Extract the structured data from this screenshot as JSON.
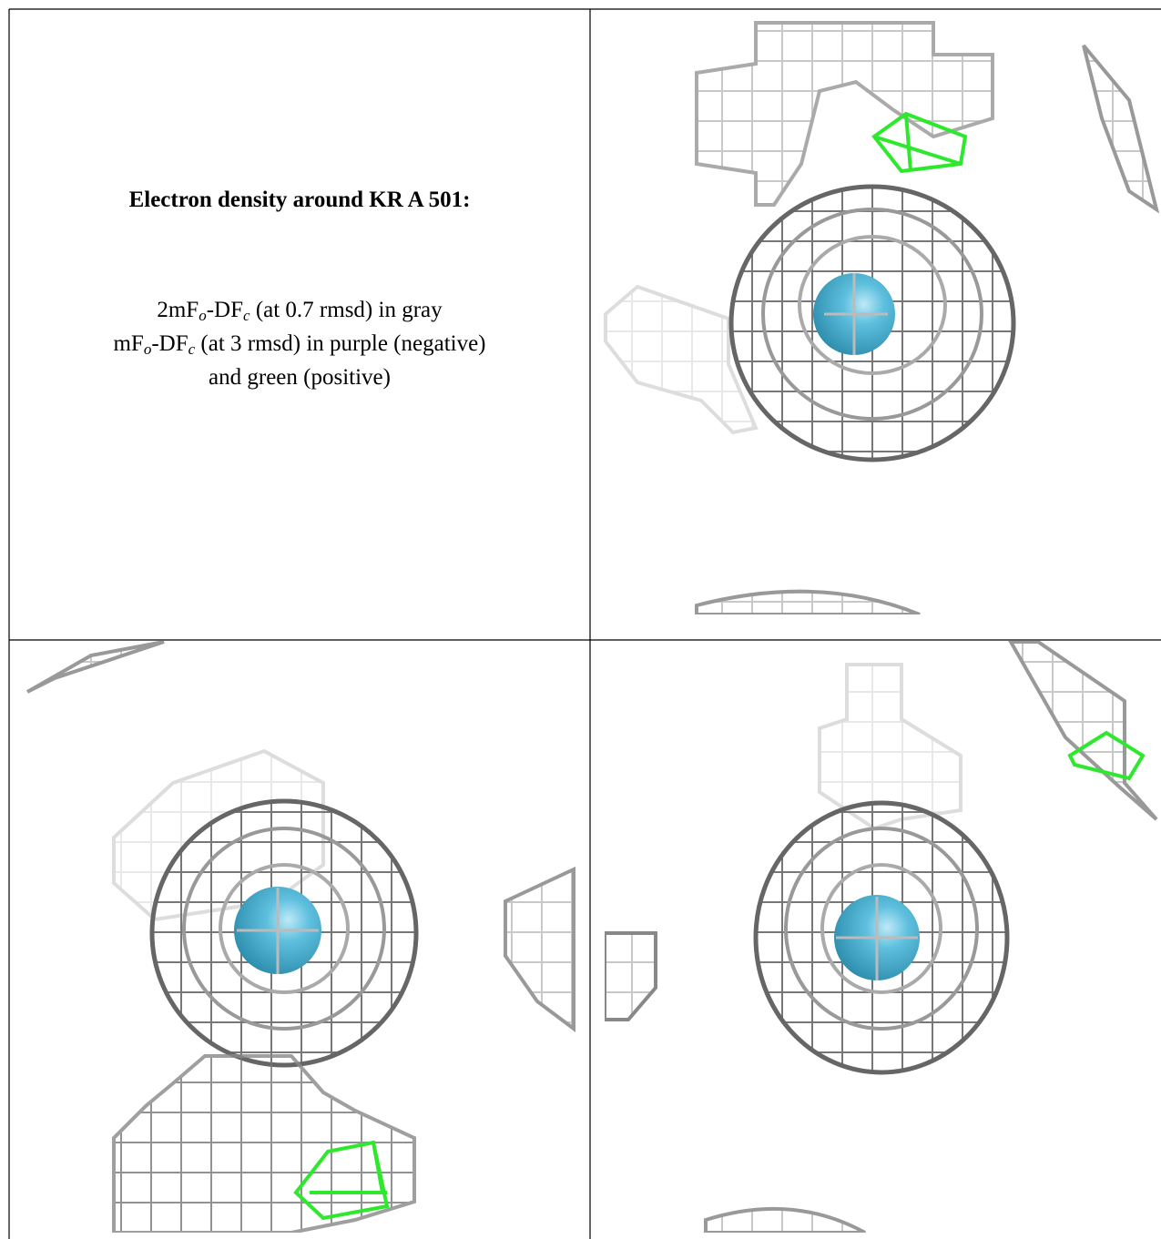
{
  "caption": {
    "title": "Electron density around KR A 501:",
    "lines": [
      [
        "2mF",
        "o",
        "-DF",
        "c",
        " (at 0.7 rmsd) in gray"
      ],
      [
        "mF",
        "o",
        "-DF",
        "c",
        " (at 3 rmsd) in purple (negative)"
      ],
      [
        "and green (positive)"
      ]
    ]
  }
}
